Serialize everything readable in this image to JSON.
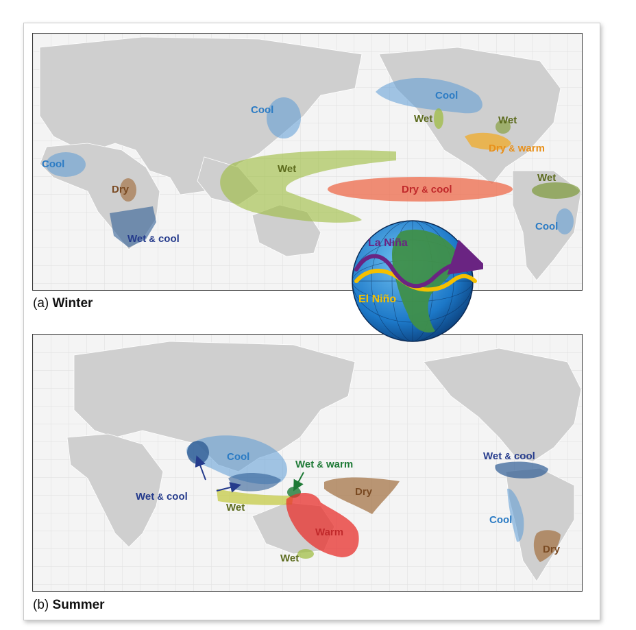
{
  "panels": {
    "winter": {
      "caption_letter": "(a)",
      "caption_word": "Winter",
      "labels": {
        "cool_west_africa": "Cool",
        "dry_central_africa": "Dry",
        "wet_cool_south_africa_a": "Wet",
        "wet_cool_south_africa_amp": "&",
        "wet_cool_south_africa_b": "cool",
        "cool_east_asia": "Cool",
        "wet_west_pacific": "Wet",
        "dry_cool_central_pacific_a": "Dry",
        "dry_cool_central_pacific_amp": "&",
        "dry_cool_central_pacific_b": "cool",
        "cool_north_america": "Cool",
        "wet_west_us": "Wet",
        "wet_east_us": "Wet",
        "dry_warm_gulf_a": "Dry",
        "dry_warm_gulf_amp": "&",
        "dry_warm_gulf_b": "warm",
        "wet_north_south_america": "Wet",
        "cool_south_america": "Cool"
      }
    },
    "summer": {
      "caption_letter": "(b)",
      "caption_word": "Summer",
      "labels": {
        "cool_southeast_asia": "Cool",
        "wet_cool_india_a": "Wet",
        "wet_cool_india_amp": "&",
        "wet_cool_india_b": "cool",
        "wet_indonesia": "Wet",
        "wet_warm_png_a": "Wet",
        "wet_warm_png_amp": "&",
        "wet_warm_png_b": "warm",
        "dry_south_pacific": "Dry",
        "warm_east_australia": "Warm",
        "wet_south_australia": "Wet",
        "wet_cool_central_america_a": "Wet",
        "wet_cool_central_america_amp": "&",
        "wet_cool_central_america_b": "cool",
        "cool_west_south_america": "Cool",
        "dry_south_south_america": "Dry"
      }
    }
  },
  "globe": {
    "la_nina": "La Niña",
    "el_nino": "El Niño"
  },
  "colors": {
    "cool": "#5b9bd5",
    "wet": "#9bbb3a",
    "dry": "#a57548",
    "dry_warm": "#f2a81d",
    "dry_cool": "#ee6a4a",
    "wet_cool": "#2f5d94",
    "warm": "#e8302c",
    "land": "#cfcfcf",
    "ocean": "#f4f4f4",
    "la_nina_path": "#6a2482",
    "el_nino_path": "#f5c000"
  }
}
